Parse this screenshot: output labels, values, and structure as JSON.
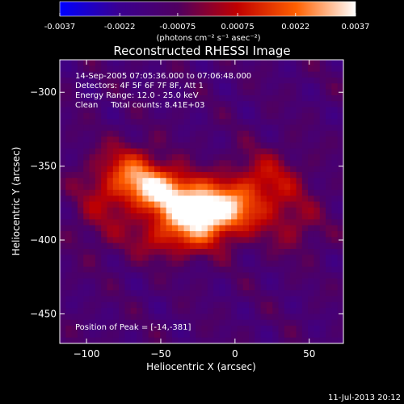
{
  "chart_data": {
    "type": "heatmap",
    "title": "Reconstructed RHESSI Image",
    "xlabel": "Heliocentric X (arcsec)",
    "ylabel": "Heliocentric Y (arcsec)",
    "xlim": [
      -118,
      73
    ],
    "ylim": [
      -470,
      -278
    ],
    "x_ticks": [
      -100,
      -50,
      0,
      50
    ],
    "y_ticks": [
      -300,
      -350,
      -400,
      -450
    ],
    "colorbar": {
      "range": [
        -0.0037,
        0.0037
      ],
      "ticks": [
        "-0.0037",
        "-0.0022",
        "-0.00075",
        "0.00075",
        "0.0022",
        "0.0037"
      ],
      "label": "(photons cm⁻² s⁻¹ asec⁻²)",
      "stops": [
        "#0000ff",
        "#3a0090",
        "#500060",
        "#c00000",
        "#ff6000",
        "#ffffff"
      ]
    },
    "info_lines": [
      "14-Sep-2005 07:05:36.000 to 07:06:48.000",
      "Detectors: 4F 5F 6F 7F 8F, Att 1",
      "Energy Range: 12.0 - 25.0 keV",
      "Clean     Total counts: 8.41E+03"
    ],
    "peak_label": "Position of Peak = [-14,-381]",
    "peak": {
      "x": -14,
      "y": -381
    },
    "sources": [
      {
        "x": -20,
        "y": -380,
        "amp": 0.0036,
        "sx": 22,
        "sy": 12
      },
      {
        "x": -52,
        "y": -365,
        "amp": 0.0022,
        "sx": 16,
        "sy": 10
      },
      {
        "x": -70,
        "y": -352,
        "amp": 0.0014,
        "sx": 14,
        "sy": 12
      },
      {
        "x": 20,
        "y": -360,
        "amp": 0.0012,
        "sx": 18,
        "sy": 14
      },
      {
        "x": -40,
        "y": -400,
        "amp": 0.0011,
        "sx": 22,
        "sy": 10
      },
      {
        "x": -90,
        "y": -375,
        "amp": 0.0008,
        "sx": 14,
        "sy": 20
      },
      {
        "x": 40,
        "y": -390,
        "amp": 0.0007,
        "sx": 14,
        "sy": 14
      }
    ],
    "background_level": -0.0012,
    "timestamp": "11-Jul-2013 20:12"
  }
}
